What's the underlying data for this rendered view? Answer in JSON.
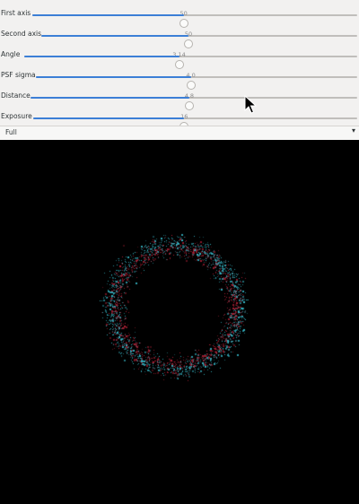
{
  "sliders": [
    {
      "label": "First axis",
      "value": "50",
      "fraction": 0.466
    },
    {
      "label": "Second axis",
      "value": "50",
      "fraction": 0.466
    },
    {
      "label": "Angle",
      "value": "3.14",
      "fraction": 0.465
    },
    {
      "label": "PSF sigma",
      "value": "4.0",
      "fraction": 0.482
    },
    {
      "label": "Distance",
      "value": "4.8",
      "fraction": 0.486
    },
    {
      "label": "Exposure",
      "value": "16",
      "fraction": 0.466
    }
  ],
  "mode": {
    "selected": "Full"
  },
  "viewport": {
    "background": "#000000",
    "ring_colors": [
      "#36b8c8",
      "#b02035"
    ]
  },
  "icons": {
    "dropdown": "chevron-down-icon",
    "cursor": "mouse-pointer-icon"
  }
}
